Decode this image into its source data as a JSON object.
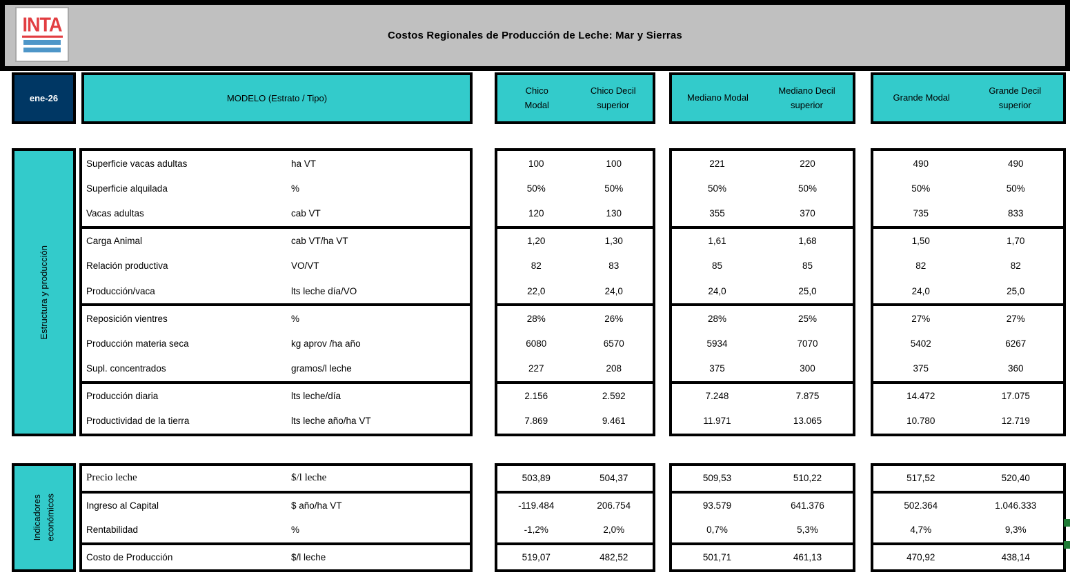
{
  "header": {
    "logo_text": "INTA",
    "title": "Costos Regionales de Producción de Leche: Mar y Sierras",
    "date": "ene-26",
    "model_label": "MODELO (Estrato / Tipo)"
  },
  "colors": {
    "teal": "#33CBCB",
    "navy": "#003764",
    "gray_band": "#C0C0C0",
    "logo_red": "#E23E42",
    "logo_blue": "#4E96C8",
    "marker_green": "#1F7B35"
  },
  "column_groups": [
    {
      "modal": "Chico\nModal",
      "decil": "Chico Decil\nsuperior"
    },
    {
      "modal": "Mediano Modal",
      "decil": "Mediano Decil\nsuperior"
    },
    {
      "modal": "Grande Modal",
      "decil": "Grande Decil\nsuperior"
    }
  ],
  "sections": [
    {
      "name": "Estructura y producción",
      "dividers_after": [
        2,
        5,
        8
      ],
      "rows": [
        {
          "label": "Superficie vacas adultas",
          "unit": "ha VT",
          "values": [
            "100",
            "100",
            "221",
            "220",
            "490",
            "490"
          ]
        },
        {
          "label": "Superficie alquilada",
          "unit": "%",
          "values": [
            "50%",
            "50%",
            "50%",
            "50%",
            "50%",
            "50%"
          ]
        },
        {
          "label": "Vacas adultas",
          "unit": "cab VT",
          "values": [
            "120",
            "130",
            "355",
            "370",
            "735",
            "833"
          ]
        },
        {
          "label": "Carga Animal",
          "unit": "cab VT/ha VT",
          "values": [
            "1,20",
            "1,30",
            "1,61",
            "1,68",
            "1,50",
            "1,70"
          ]
        },
        {
          "label": "Relación productiva",
          "unit": "VO/VT",
          "values": [
            "82",
            "83",
            "85",
            "85",
            "82",
            "82"
          ]
        },
        {
          "label": "Producción/vaca",
          "unit": "lts leche día/VO",
          "values": [
            "22,0",
            "24,0",
            "24,0",
            "25,0",
            "24,0",
            "25,0"
          ]
        },
        {
          "label": "Reposición vientres",
          "unit": "%",
          "values": [
            "28%",
            "26%",
            "28%",
            "25%",
            "27%",
            "27%"
          ]
        },
        {
          "label": "Producción materia seca",
          "unit": "kg aprov /ha año",
          "values": [
            "6080",
            "6570",
            "5934",
            "7070",
            "5402",
            "6267"
          ]
        },
        {
          "label": "Supl. concentrados",
          "unit": "gramos/l leche",
          "values": [
            "227",
            "208",
            "375",
            "300",
            "375",
            "360"
          ]
        },
        {
          "label": "Producción diaria",
          "unit": "lts leche/día",
          "values": [
            "2.156",
            "2.592",
            "7.248",
            "7.875",
            "14.472",
            "17.075"
          ]
        },
        {
          "label": "Productividad de la tierra",
          "unit": "lts leche año/ha VT",
          "values": [
            "7.869",
            "9.461",
            "11.971",
            "13.065",
            "10.780",
            "12.719"
          ]
        }
      ]
    },
    {
      "name": "Indicadores\neconómicos",
      "dividers_after": [
        0,
        2
      ],
      "rows": [
        {
          "label": "Precio leche",
          "unit": "$/l leche",
          "values": [
            "503,89",
            "504,37",
            "509,53",
            "510,22",
            "517,52",
            "520,40"
          ]
        },
        {
          "label": "Ingreso al Capital",
          "unit": "$ año/ha VT",
          "values": [
            "-119.484",
            "206.754",
            "93.579",
            "641.376",
            "502.364",
            "1.046.333"
          ]
        },
        {
          "label": "Rentabilidad",
          "unit": "%",
          "values": [
            "-1,2%",
            "2,0%",
            "0,7%",
            "5,3%",
            "4,7%",
            "9,3%"
          ]
        },
        {
          "label": "Costo de Producción",
          "unit": "$/l leche",
          "values": [
            "519,07",
            "482,52",
            "501,71",
            "461,13",
            "470,92",
            "438,14"
          ]
        }
      ]
    }
  ]
}
